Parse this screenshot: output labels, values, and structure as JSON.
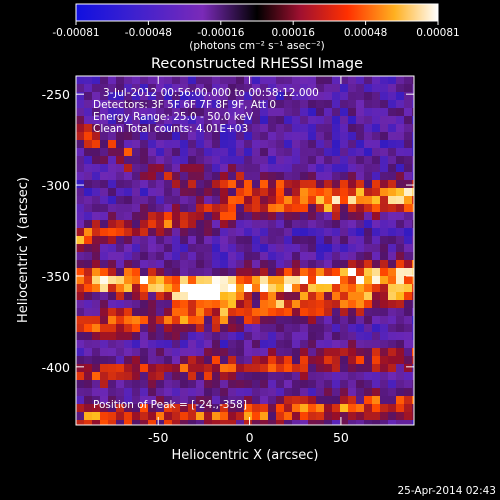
{
  "chart_data": {
    "type": "heatmap",
    "title": "Reconstructed RHESSI Image",
    "xlabel": "Heliocentric X (arcsec)",
    "ylabel": "Heliocentric Y (arcsec)",
    "xlim": [
      -95,
      90
    ],
    "ylim": [
      -432,
      -240
    ],
    "x_ticks": [
      -50,
      0,
      50
    ],
    "y_ticks": [
      -250,
      -300,
      -350,
      -400
    ],
    "grid": false,
    "colorbar": {
      "label": "(photons cm⁻² s⁻¹ asec⁻²)",
      "ticks": [
        "-0.00081",
        "-0.00048",
        "-0.00016",
        "0.00016",
        "0.00048",
        "0.00081"
      ],
      "range": [
        -0.00081,
        0.00081
      ],
      "colormap": [
        "#000000",
        "#1010e0",
        "#7a2ab8",
        "#c01830",
        "#ff5a00",
        "#ffc020",
        "#ffffff"
      ]
    },
    "annotations": {
      "time": "3-Jul-2012 00:56:00.000 to 00:58:12.000",
      "detectors": "Detectors: 3F 5F 6F 7F 8F 9F, Att 0",
      "energy": "Energy Range: 25.0 - 50.0 keV",
      "clean": "Clean    Total counts: 4.01E+03",
      "peak": "Position of Peak = [-24.,-358]"
    },
    "peak_position": [
      -24,
      -358
    ],
    "ridges": [
      {
        "y": [
          -270,
          -298,
          -305
        ],
        "x": [
          -95,
          -40,
          90
        ],
        "amp": 0.45
      },
      {
        "y": [
          -330,
          -313,
          -308
        ],
        "x": [
          -95,
          -10,
          90
        ],
        "amp": 0.6
      },
      {
        "y": [
          -352,
          -357,
          -348
        ],
        "x": [
          -95,
          -24,
          90
        ],
        "amp": 1.0
      },
      {
        "y": [
          -378,
          -370,
          -360
        ],
        "x": [
          -95,
          0,
          90
        ],
        "amp": 0.7
      },
      {
        "y": [
          -405,
          -400,
          -395
        ],
        "x": [
          -95,
          0,
          90
        ],
        "amp": 0.55
      },
      {
        "y": [
          -428,
          -426,
          -420
        ],
        "x": [
          -95,
          0,
          90
        ],
        "amp": 0.6
      }
    ]
  },
  "footer": {
    "date": "25-Apr-2014 02:43"
  }
}
